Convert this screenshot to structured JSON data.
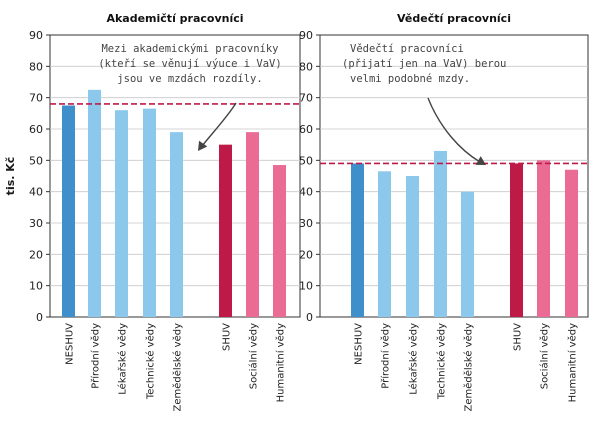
{
  "ylabel": "tis. Kč",
  "chart_data": [
    {
      "type": "bar",
      "title": "Akademičtí pracovníci",
      "ylabel": "tis. Kč",
      "ylim": [
        0,
        90
      ],
      "yticks": [
        0,
        10,
        20,
        30,
        40,
        50,
        60,
        70,
        80,
        90
      ],
      "categories": [
        "NESHUV",
        "Přírodní vědy",
        "Lékařské vědy",
        "Technické vědy",
        "Zemědělské vědy",
        "SHUV",
        "Sociální vědy",
        "Humanitní vědy"
      ],
      "values": [
        67.5,
        72.5,
        66,
        66.5,
        59,
        55,
        59,
        48.5
      ],
      "bar_colors": [
        "#3f8fca",
        "#8cc8ec",
        "#8cc8ec",
        "#8cc8ec",
        "#8cc8ec",
        "#be1a47",
        "#ea6c94",
        "#ea6c94"
      ],
      "reference_line": 68,
      "reference_color": "#be1a47",
      "grid": true,
      "annotation": [
        "Mezi akademickými pracovníky",
        "(kteří se věnují výuce i VaV)",
        "jsou ve mzdách rozdíly."
      ]
    },
    {
      "type": "bar",
      "title": "Vědečtí pracovníci",
      "ylim": [
        0,
        90
      ],
      "yticks": [
        0,
        10,
        20,
        30,
        40,
        50,
        60,
        70,
        80,
        90
      ],
      "categories": [
        "NESHUV",
        "Přírodní vědy",
        "Lékařské vědy",
        "Technické vědy",
        "Zemědělské vědy",
        "SHUV",
        "Sociální vědy",
        "Humanitní vědy"
      ],
      "values": [
        49,
        46.5,
        45,
        53,
        40,
        49,
        50,
        47
      ],
      "bar_colors": [
        "#3f8fca",
        "#8cc8ec",
        "#8cc8ec",
        "#8cc8ec",
        "#8cc8ec",
        "#be1a47",
        "#ea6c94",
        "#ea6c94"
      ],
      "reference_line": 49,
      "reference_color": "#be1a47",
      "grid": true,
      "annotation": [
        "Vědečtí pracovníci",
        "(přijatí jen na VaV) berou",
        "velmi podobné mzdy."
      ]
    }
  ]
}
